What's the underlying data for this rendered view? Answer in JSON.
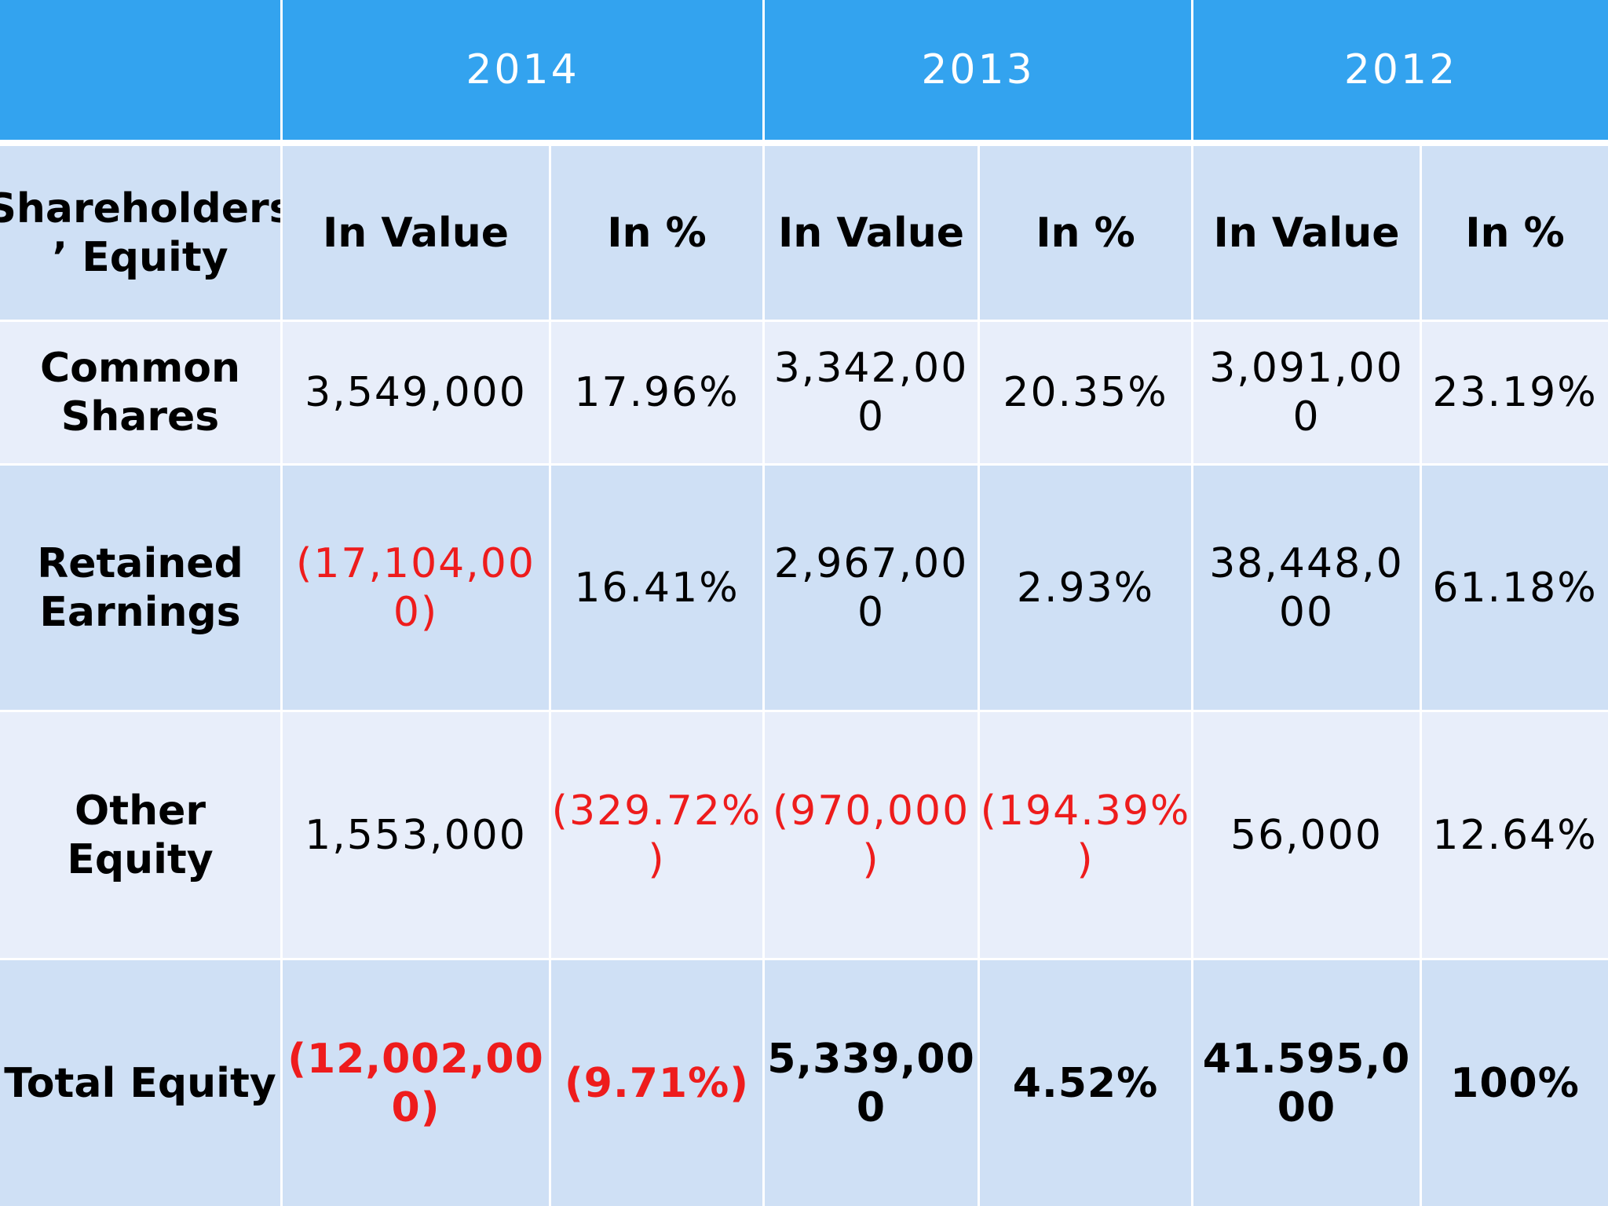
{
  "header": {
    "corner": "",
    "years": [
      "2014",
      "2013",
      "2012"
    ]
  },
  "subheader": {
    "label": "Shareholders\n’ Equity",
    "columns": [
      "In Value",
      "In %",
      "In Value",
      "In %",
      "In Value",
      "In %"
    ]
  },
  "rows": [
    {
      "label": "Common\nShares",
      "values": [
        "3,549,000",
        "17.96%",
        "3,342,00\n0",
        "20.35%",
        "3,091,00\n0",
        "23.19%"
      ],
      "negative": [
        false,
        false,
        false,
        false,
        false,
        false
      ]
    },
    {
      "label": "Retained\nEarnings",
      "values": [
        "(17,104,00\n0)",
        "16.41%",
        "2,967,00\n0",
        "2.93%",
        "38,448,0\n00",
        "61.18%"
      ],
      "negative": [
        true,
        false,
        false,
        false,
        false,
        false
      ]
    },
    {
      "label": "Other Equity",
      "values": [
        "1,553,000",
        "(329.72%\n)",
        "(970,000\n)",
        "(194.39%\n)",
        "56,000",
        "12.64%"
      ],
      "negative": [
        false,
        true,
        true,
        true,
        false,
        false
      ]
    },
    {
      "label": "Total Equity",
      "values": [
        "(12,002,00\n0)",
        "(9.71%)",
        "5,339,00\n0",
        "4.52%",
        "41.595,0\n00",
        "100%"
      ],
      "negative": [
        true,
        true,
        false,
        false,
        false,
        false
      ]
    }
  ],
  "colors": {
    "header_bg": "#33a3ef",
    "dark_band": "#cfe0f5",
    "light_band": "#e8eefa",
    "negative_text": "#ee1c1c"
  }
}
